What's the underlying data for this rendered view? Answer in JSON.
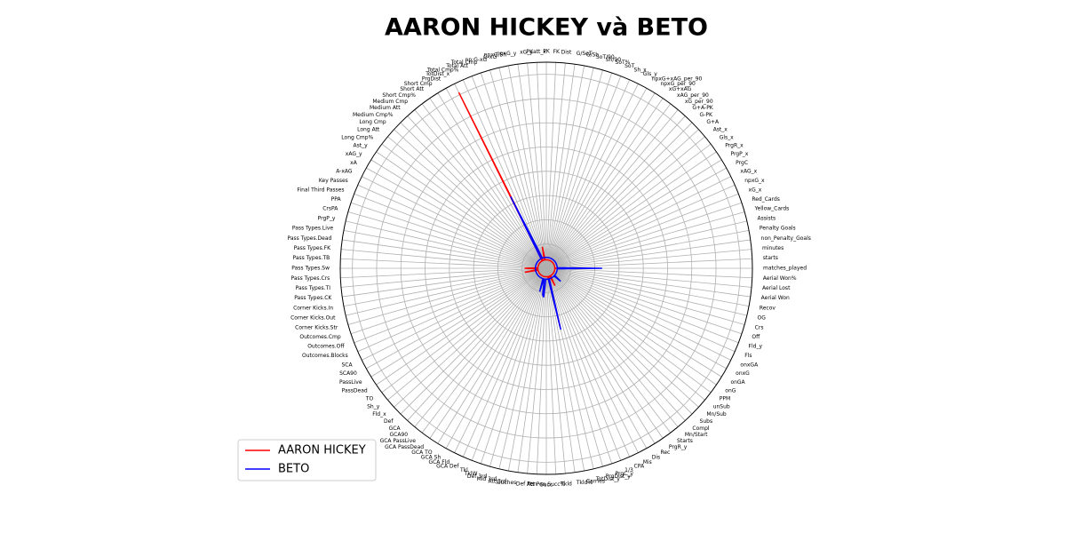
{
  "chart_data": {
    "type": "radar",
    "title": "AARON HICKEY và BETO",
    "categories": [
      "matches_played",
      "starts",
      "minutes",
      "non_Penalty_Goals",
      "Penalty Goals",
      "Assists",
      "Yellow_Cards",
      "Red_Cards",
      "xG_x",
      "npxG_x",
      "xAG_x",
      "PrgC",
      "PrgP_x",
      "PrgR_x",
      "Gls_x",
      "Ast_x",
      "G+A",
      "G-PK",
      "G+A-PK",
      "xG_per_90",
      "xAG_per_90",
      "xG+xAG",
      "npxG_per_90",
      "npxG+xAG_per_90",
      "Gls_y",
      "Sh_x",
      "SoT",
      "SoT%",
      "Sh/90",
      "SoT/90",
      "G/Sh",
      "G/SoT",
      "Dist",
      "FK",
      "PK",
      "PKatt_x",
      "xG_y",
      "npxG_y",
      "npxG/Sh",
      "G-xG",
      "np:G-xG",
      "Total Cmp",
      "Total Att",
      "Total Cmp%",
      "TotDist_x",
      "PrgDist",
      "Short Cmp",
      "Short Att",
      "Short Cmp%",
      "Medium Cmp",
      "Medium Att",
      "Medium Cmp%",
      "Long Cmp",
      "Long Att",
      "Long Cmp%",
      "Ast_y",
      "xAG_y",
      "xA",
      "A-xAG",
      "Key Passes",
      "Final Third Passes",
      "PPA",
      "CrsPA",
      "PrgP_y",
      "Pass Types.Live",
      "Pass Types.Dead",
      "Pass Types.FK",
      "Pass Types.TB",
      "Pass Types.Sw",
      "Pass Types.Crs",
      "Pass Types.TI",
      "Pass Types.CK",
      "Corner Kicks.In",
      "Corner Kicks.Out",
      "Corner Kicks.Str",
      "Outcomes.Cmp",
      "Outcomes.Off",
      "Outcomes.Blocks",
      "SCA",
      "SCA90",
      "PassLive",
      "PassDead",
      "TO",
      "Sh_y",
      "Fld_x",
      "Def",
      "GCA",
      "GCA90",
      "GCA PassLive",
      "GCA PassDead",
      "GCA TO",
      "GCA Sh",
      "GCA Fld",
      "GCA Def",
      "Tkl",
      "TklW",
      "Def 3rd",
      "Mid 3rd",
      "Att 3rd",
      "Touches",
      "Def Pen",
      "Att Pen",
      "Succ",
      "Succ%",
      "Tkld",
      "Tkld%",
      "Carries",
      "TotDist_y",
      "PrgDist_y",
      "PrgC_y",
      "1/3",
      "CPA",
      "Mis",
      "Dis",
      "Rec",
      "PrgR_y",
      "Starts",
      "Mn/Start",
      "Compl",
      "Subs",
      "Mn/Sub",
      "unSub",
      "PPM",
      "onG",
      "onGA",
      "onxG",
      "onxGA",
      "Fls",
      "Fld_y",
      "Off",
      "Crs",
      "OG",
      "Recov",
      "Aerial Won",
      "Aerial Lost",
      "Aerial Won%"
    ],
    "series": [
      {
        "name": "AARON HICKEY",
        "color": "#ff0000",
        "values": [
          0.4,
          0.35,
          0.35,
          0.35,
          0.35,
          0.35,
          0.35,
          0.35,
          0.35,
          0.35,
          0.35,
          0.35,
          0.35,
          0.35,
          0.35,
          0.35,
          0.35,
          0.35,
          0.35,
          0.35,
          0.35,
          0.35,
          0.35,
          0.35,
          0.35,
          0.35,
          0.35,
          0.35,
          0.35,
          0.35,
          0.35,
          0.35,
          0.35,
          0.35,
          0.35,
          0.35,
          0.35,
          0.35,
          0.9,
          0.35,
          0.35,
          0.35,
          0.35,
          0.35,
          8.1,
          0.35,
          0.35,
          0.35,
          0.35,
          0.35,
          0.35,
          0.35,
          0.35,
          0.35,
          0.35,
          0.35,
          0.35,
          0.35,
          0.35,
          0.35,
          0.35,
          0.35,
          0.35,
          0.35,
          0.35,
          0.35,
          0.35,
          0.35,
          0.9,
          0.35,
          0.35,
          0.35,
          0.9,
          0.35,
          0.35,
          0.35,
          0.35,
          0.35,
          0.35,
          0.35,
          0.35,
          0.35,
          0.35,
          0.35,
          0.35,
          0.35,
          0.35,
          0.35,
          0.35,
          0.35,
          0.35,
          0.35,
          0.35,
          0.35,
          0.35,
          0.35,
          0.35,
          0.35,
          0.35,
          0.35,
          0.35,
          0.35,
          0.35,
          0.35,
          0.35,
          0.35,
          0.35,
          2.5,
          0.35,
          0.35,
          0.35,
          0.35,
          0.8,
          0.35,
          0.35,
          0.35,
          0.35,
          0.35,
          0.35,
          0.35,
          0.35,
          0.35,
          0.35,
          0.35,
          0.35,
          0.35,
          0.35,
          0.35,
          0.35,
          0.35,
          0.35,
          0.35,
          0.35,
          0.35,
          0.35,
          0.35
        ]
      },
      {
        "name": "BETO",
        "color": "#0000ff",
        "values": [
          2.3,
          0.45,
          0.45,
          0.45,
          0.45,
          0.45,
          0.45,
          0.45,
          0.45,
          0.45,
          0.45,
          0.45,
          0.45,
          0.45,
          0.45,
          0.45,
          0.45,
          0.45,
          0.45,
          0.45,
          0.45,
          0.45,
          0.45,
          0.45,
          0.45,
          0.45,
          0.45,
          0.45,
          0.45,
          0.45,
          0.45,
          0.45,
          0.45,
          0.45,
          0.45,
          0.45,
          0.45,
          0.45,
          0.45,
          0.45,
          0.45,
          0.45,
          0.45,
          0.9,
          3.3,
          0.45,
          0.45,
          0.45,
          0.45,
          0.45,
          0.45,
          0.45,
          0.45,
          0.45,
          0.45,
          0.45,
          0.45,
          0.45,
          0.45,
          0.45,
          0.45,
          0.45,
          0.45,
          0.45,
          0.45,
          0.45,
          0.45,
          0.45,
          0.45,
          0.45,
          0.45,
          0.45,
          0.45,
          0.45,
          0.45,
          0.45,
          0.45,
          0.45,
          0.45,
          0.45,
          0.45,
          0.45,
          0.45,
          0.45,
          0.45,
          0.45,
          0.45,
          0.45,
          0.45,
          0.45,
          0.45,
          0.45,
          0.45,
          0.45,
          0.45,
          0.45,
          1.0,
          0.45,
          0.45,
          1.1,
          1.2,
          0.45,
          0.45,
          0.45,
          0.45,
          0.45,
          0.45,
          2.6,
          0.45,
          0.45,
          0.45,
          0.45,
          0.45,
          0.45,
          0.45,
          0.45,
          0.45,
          0.45,
          0.45,
          0.45,
          0.8,
          0.45,
          0.45,
          0.45,
          0.45,
          0.45,
          0.45,
          0.45,
          0.45,
          0.45,
          0.45,
          0.45,
          0.45,
          0.45,
          0.45,
          0.45
        ]
      }
    ],
    "ylim": [
      0,
      8.5
    ],
    "yticks": [
      1,
      2,
      3,
      4,
      5,
      6,
      7,
      8
    ],
    "ytick_labels": false,
    "grid": true,
    "legend": "lower left"
  }
}
